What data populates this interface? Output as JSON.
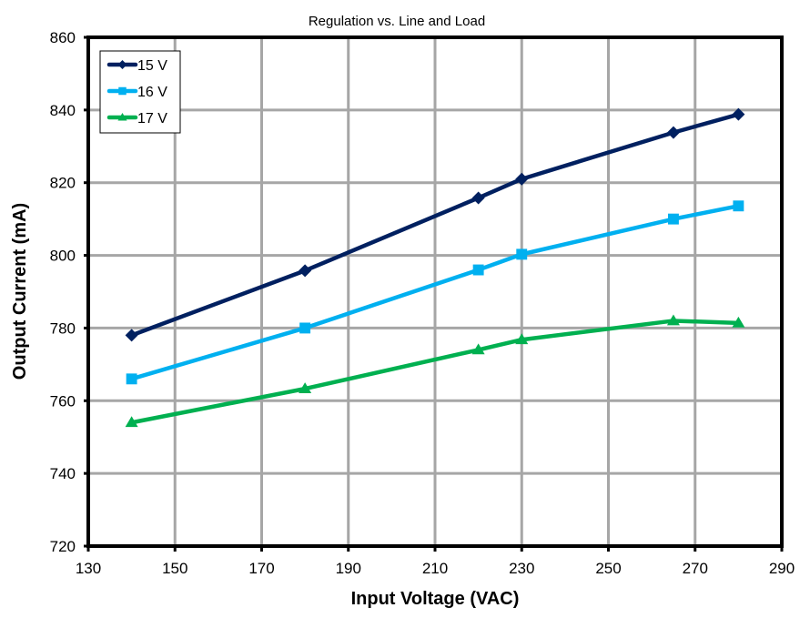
{
  "chart_data": {
    "type": "line",
    "title": "Regulation vs. Line and Load",
    "xlabel": "Input Voltage (VAC)",
    "ylabel": "Output Current (mA)",
    "xlim": [
      130,
      290
    ],
    "ylim": [
      720,
      860
    ],
    "xticks": [
      130,
      150,
      170,
      190,
      210,
      230,
      250,
      270,
      290
    ],
    "yticks": [
      720,
      740,
      760,
      780,
      800,
      820,
      840,
      860
    ],
    "grid": true,
    "legend_position": "top-left",
    "x": [
      140,
      180,
      220,
      230,
      265,
      280
    ],
    "series": [
      {
        "name": "15 V",
        "color": "#002060",
        "marker": "diamond",
        "values": [
          778,
          795.8,
          815.8,
          821,
          833.8,
          838.8
        ]
      },
      {
        "name": "16 V",
        "color": "#00B0F0",
        "marker": "square",
        "values": [
          766,
          780,
          796,
          800.3,
          810,
          813.6
        ]
      },
      {
        "name": "17 V",
        "color": "#00B050",
        "marker": "triangle",
        "values": [
          754,
          763.3,
          774,
          776.8,
          782,
          781.4
        ]
      }
    ]
  }
}
